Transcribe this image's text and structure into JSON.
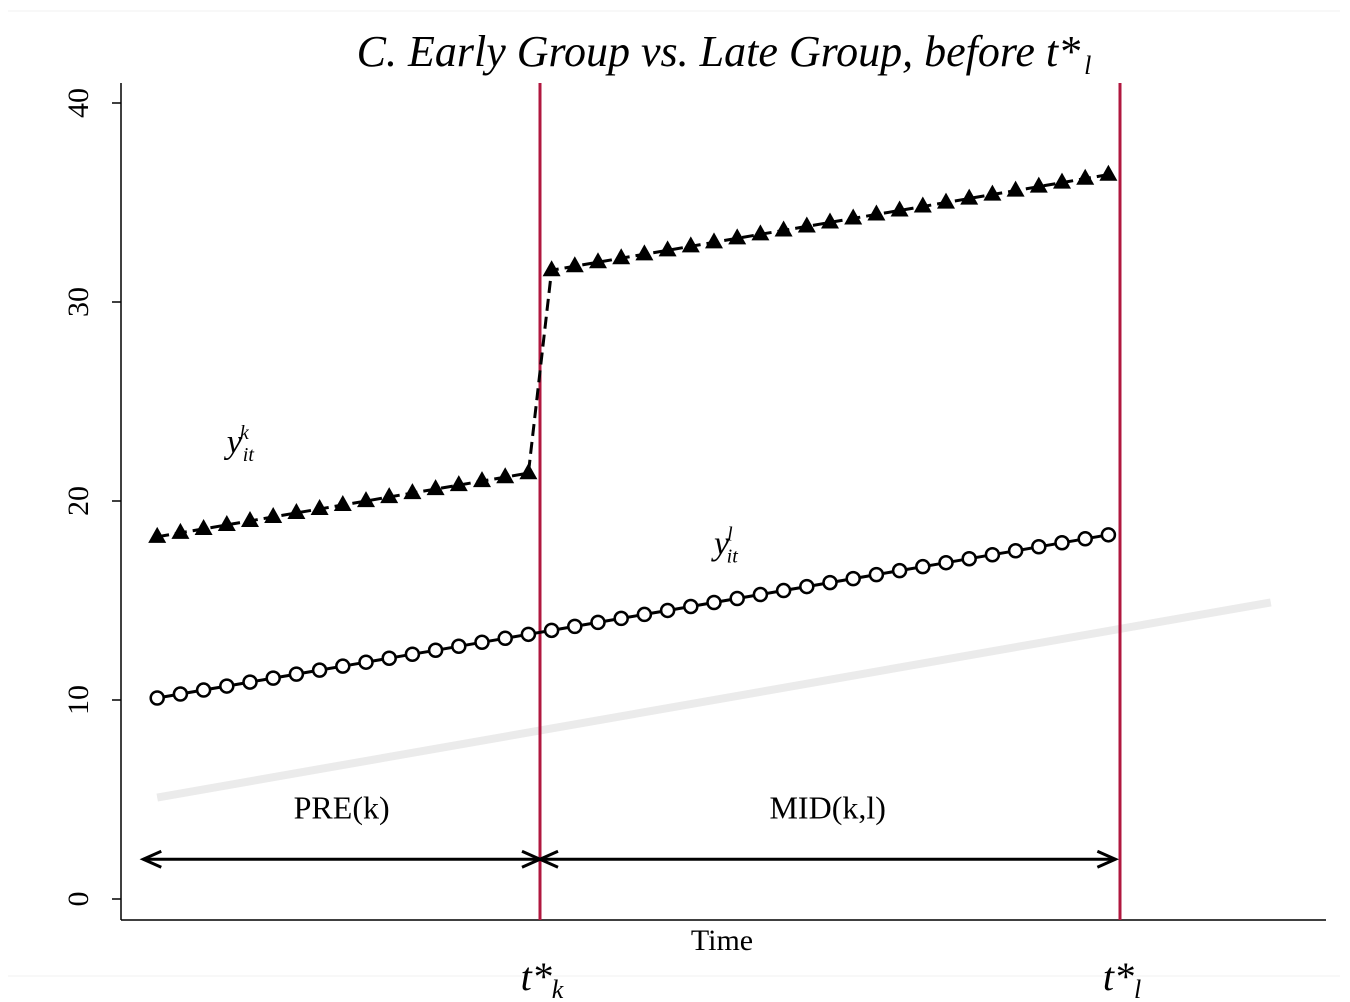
{
  "chart_data": {
    "type": "line",
    "title": "C. Early Group vs. Late Group, before t*",
    "title_subscript": "l",
    "xlabel": "Time",
    "ylabel": "",
    "ylim": [
      0,
      40
    ],
    "yticks": [
      "0",
      "10",
      "20",
      "30",
      "40"
    ],
    "grid": false,
    "x": [
      1,
      2,
      3,
      4,
      5,
      6,
      7,
      8,
      9,
      10,
      11,
      12,
      13,
      14,
      15,
      16,
      17,
      18,
      19,
      20,
      21,
      22,
      23,
      24,
      25,
      26,
      27,
      28,
      29,
      30,
      31,
      32,
      33,
      34,
      35,
      36,
      37,
      38,
      39,
      40,
      41,
      42
    ],
    "xlim": [
      0,
      50
    ],
    "series": [
      {
        "name": "y^k_it",
        "label_main": "y",
        "label_sup": "k",
        "label_sub": "it",
        "marker": "triangle",
        "line": "dashed",
        "values": [
          18.2,
          18.4,
          18.6,
          18.8,
          19.0,
          19.2,
          19.4,
          19.6,
          19.8,
          20.0,
          20.2,
          20.4,
          20.6,
          20.8,
          21.0,
          21.2,
          21.4,
          31.6,
          31.8,
          32.0,
          32.2,
          32.4,
          32.6,
          32.8,
          33.0,
          33.2,
          33.4,
          33.6,
          33.8,
          34.0,
          34.2,
          34.4,
          34.6,
          34.8,
          35.0,
          35.2,
          35.4,
          35.6,
          35.8,
          36.0,
          36.2,
          36.4
        ]
      },
      {
        "name": "y^l_it",
        "label_main": "y",
        "label_sup": "l",
        "label_sub": "it",
        "marker": "circle",
        "line": "solid",
        "values": [
          10.1,
          10.3,
          10.5,
          10.7,
          10.9,
          11.1,
          11.3,
          11.5,
          11.7,
          11.9,
          12.1,
          12.3,
          12.5,
          12.7,
          12.9,
          13.1,
          13.3,
          13.5,
          13.7,
          13.9,
          14.1,
          14.3,
          14.5,
          14.7,
          14.9,
          15.1,
          15.3,
          15.5,
          15.7,
          15.9,
          16.1,
          16.3,
          16.5,
          16.7,
          16.9,
          17.1,
          17.3,
          17.5,
          17.7,
          17.9,
          18.1,
          18.3
        ]
      }
    ],
    "trend_line": {
      "x": [
        1,
        49
      ],
      "values": [
        5.1,
        14.9
      ],
      "color": "#ebebeb"
    },
    "vertical_lines": [
      {
        "x": 17.5,
        "label": "t*",
        "subscript": "k",
        "color": "#b0173f"
      },
      {
        "x": 42.5,
        "label": "t*",
        "subscript": "l",
        "color": "#b0173f"
      }
    ],
    "regions": [
      {
        "label": "PRE(k)",
        "x_from": 0.4,
        "x_to": 17.5,
        "arrow_y": 2.0,
        "label_y": 4.6
      },
      {
        "label": "MID(k,l)",
        "x_from": 17.5,
        "x_to": 42.3,
        "arrow_y": 2.0,
        "label_y": 4.6
      }
    ]
  }
}
